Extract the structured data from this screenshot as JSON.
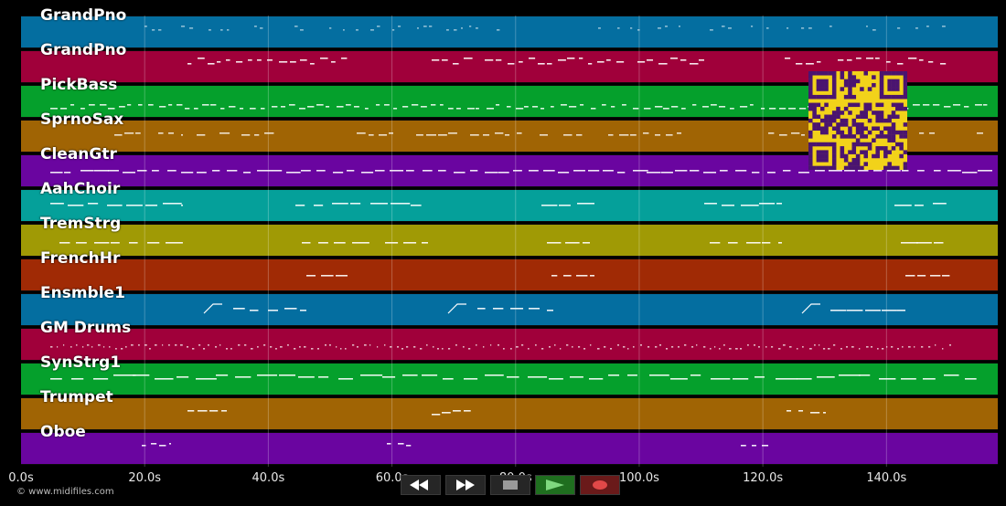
{
  "tracks": [
    {
      "name": "GrandPno",
      "color": "#046ea0"
    },
    {
      "name": "GrandPno",
      "color": "#a0003a"
    },
    {
      "name": "PickBass",
      "color": "#05a02c"
    },
    {
      "name": "SprnoSax",
      "color": "#a06404"
    },
    {
      "name": "CleanGtr",
      "color": "#6a05a0"
    },
    {
      "name": "AahChoir",
      "color": "#05a09a"
    },
    {
      "name": "TremStrg",
      "color": "#a09a05"
    },
    {
      "name": "FrenchHr",
      "color": "#a02a05"
    },
    {
      "name": "Ensmble1",
      "color": "#046ea0"
    },
    {
      "name": "GM Drums",
      "color": "#a0003a"
    },
    {
      "name": "SynStrg1",
      "color": "#05a02c"
    },
    {
      "name": "Trumpet",
      "color": "#a06404"
    },
    {
      "name": "Oboe",
      "color": "#6a05a0"
    }
  ],
  "timeline": {
    "ticks": [
      "0.0s",
      "20.0s",
      "40.0s",
      "60.0s",
      "80.0s",
      "100.0s",
      "120.0s",
      "140.0s"
    ],
    "tick_values": [
      0,
      20,
      40,
      60,
      80,
      100,
      120,
      140
    ],
    "end_seconds": 158,
    "grid_color": "#ffffff"
  },
  "copyright": "© www.midifiles.com",
  "transport": {
    "rewind_icon": "rewind-icon",
    "fast_forward_icon": "fast-forward-icon",
    "stop_icon": "stop-icon",
    "play_icon": "play-icon",
    "record_icon": "record-icon"
  },
  "overlay": {
    "qr_icon": "qr-code-icon"
  }
}
